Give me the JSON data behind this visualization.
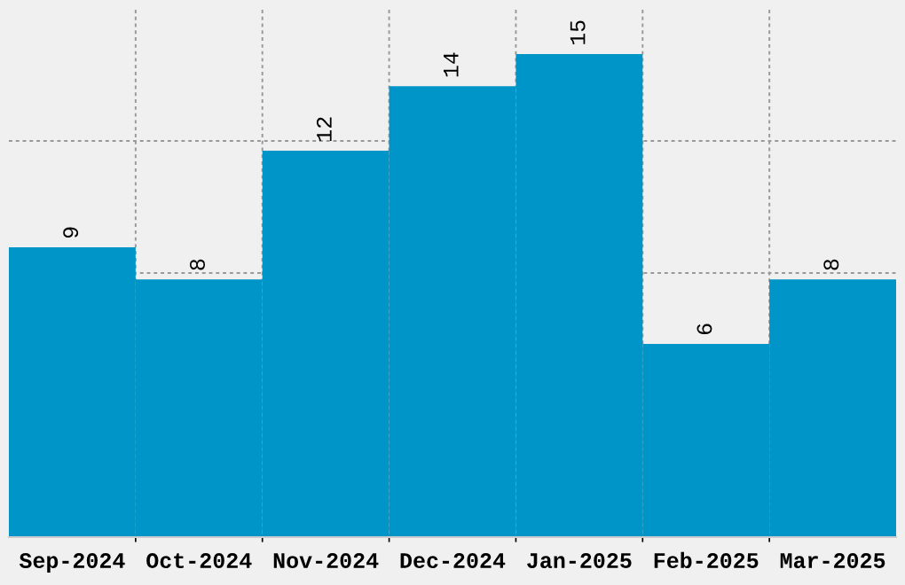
{
  "chart_data": {
    "type": "bar",
    "categories": [
      "Sep-2024",
      "Oct-2024",
      "Nov-2024",
      "Dec-2024",
      "Jan-2025",
      "Feb-2025",
      "Mar-2025"
    ],
    "values": [
      9,
      8,
      12,
      14,
      15,
      6,
      8
    ],
    "color": "#0095c8",
    "ylim": [
      0,
      16.4
    ],
    "grid": true,
    "data_labels": true,
    "tick_labels": "x"
  }
}
